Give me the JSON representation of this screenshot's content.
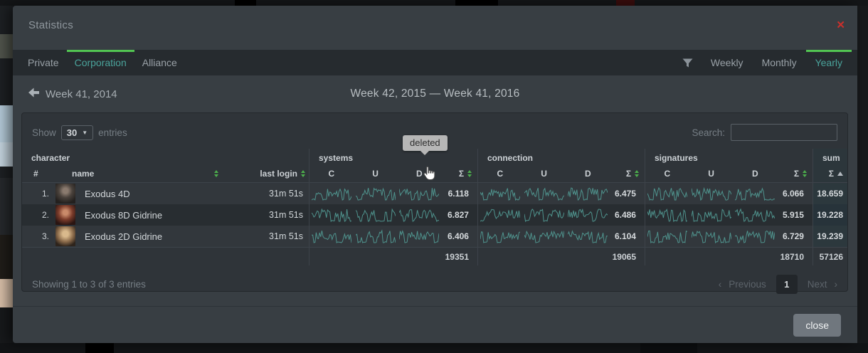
{
  "modal": {
    "title": "Statistics",
    "close_icon": "✕",
    "close_button": "close"
  },
  "tabs": {
    "items": [
      {
        "label": "Private",
        "active": false
      },
      {
        "label": "Corporation",
        "active": true
      },
      {
        "label": "Alliance",
        "active": false
      }
    ]
  },
  "period_filters": {
    "items": [
      {
        "label": "Weekly",
        "active": false
      },
      {
        "label": "Monthly",
        "active": false
      },
      {
        "label": "Yearly",
        "active": true
      }
    ]
  },
  "week_nav": {
    "prev_label": "Week 41, 2014",
    "range_label": "Week 42, 2015 — Week 41, 2016"
  },
  "table_controls": {
    "show_label": "Show",
    "page_length": "30",
    "length_caret": "▼",
    "entries_label": "entries",
    "search_label": "Search:",
    "search_value": ""
  },
  "tooltip": {
    "text": "deleted"
  },
  "table": {
    "group_headers": [
      "character",
      "systems",
      "connection",
      "signatures",
      "sum"
    ],
    "columns": {
      "index": "#",
      "name": "name",
      "last_login": "last login",
      "c": "C",
      "u": "U",
      "d": "D",
      "sigma": "Σ"
    },
    "rows": [
      {
        "index": "1.",
        "name": "Exodus 4D",
        "last_login": "31m 51s",
        "systems_sum": "6.118",
        "connection_sum": "6.475",
        "signatures_sum": "6.066",
        "total": "18.659"
      },
      {
        "index": "2.",
        "name": "Exodus 8D Gidrine",
        "last_login": "31m 51s",
        "systems_sum": "6.827",
        "connection_sum": "6.486",
        "signatures_sum": "5.915",
        "total": "19.228"
      },
      {
        "index": "3.",
        "name": "Exodus 2D Gidrine",
        "last_login": "31m 51s",
        "systems_sum": "6.406",
        "connection_sum": "6.104",
        "signatures_sum": "6.729",
        "total": "19.239"
      }
    ],
    "footer": {
      "systems": "19351",
      "connection": "19065",
      "signatures": "18710",
      "total": "57126"
    }
  },
  "table_info": {
    "showing": "Showing 1 to 3 of 3 entries"
  },
  "pagination": {
    "prev_icon": "‹",
    "previous": "Previous",
    "current": "1",
    "next": "Next",
    "next_icon": "›"
  },
  "colors": {
    "accent_green": "#52c452",
    "accent_teal": "#4aa39b",
    "sparkline": "#4f938d",
    "alert_red": "#c9302c"
  }
}
